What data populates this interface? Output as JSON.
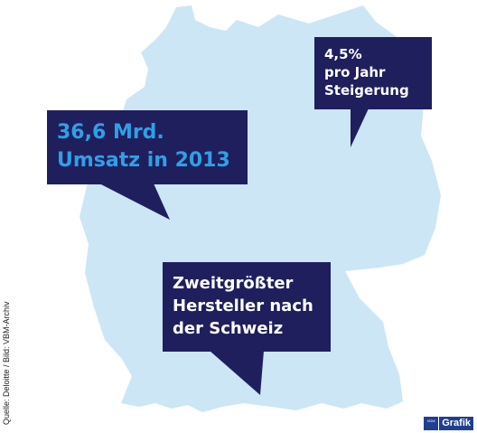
{
  "colors": {
    "map_fill": "#cce6f5",
    "bubble_bg": "#1f1f5e",
    "bubble_text": "#ffffff",
    "highlight_text": "#2fa0e6",
    "brand_blue": "#1f3f8f"
  },
  "map": {
    "icon": "germany-map"
  },
  "callouts": [
    {
      "lines": [
        "4,5%",
        "pro Jahr",
        "Steigerung"
      ]
    },
    {
      "lines": [
        "36,6 Mrd.",
        "Umsatz in 2013"
      ]
    },
    {
      "lines": [
        "Zweitgrößter",
        "Hersteller nach",
        "der Schweiz"
      ]
    }
  ],
  "source": "Quelle: Deloitte / Bild: VBM-Archiv",
  "brand": {
    "logo_text": "VDM",
    "label": "Grafik"
  }
}
